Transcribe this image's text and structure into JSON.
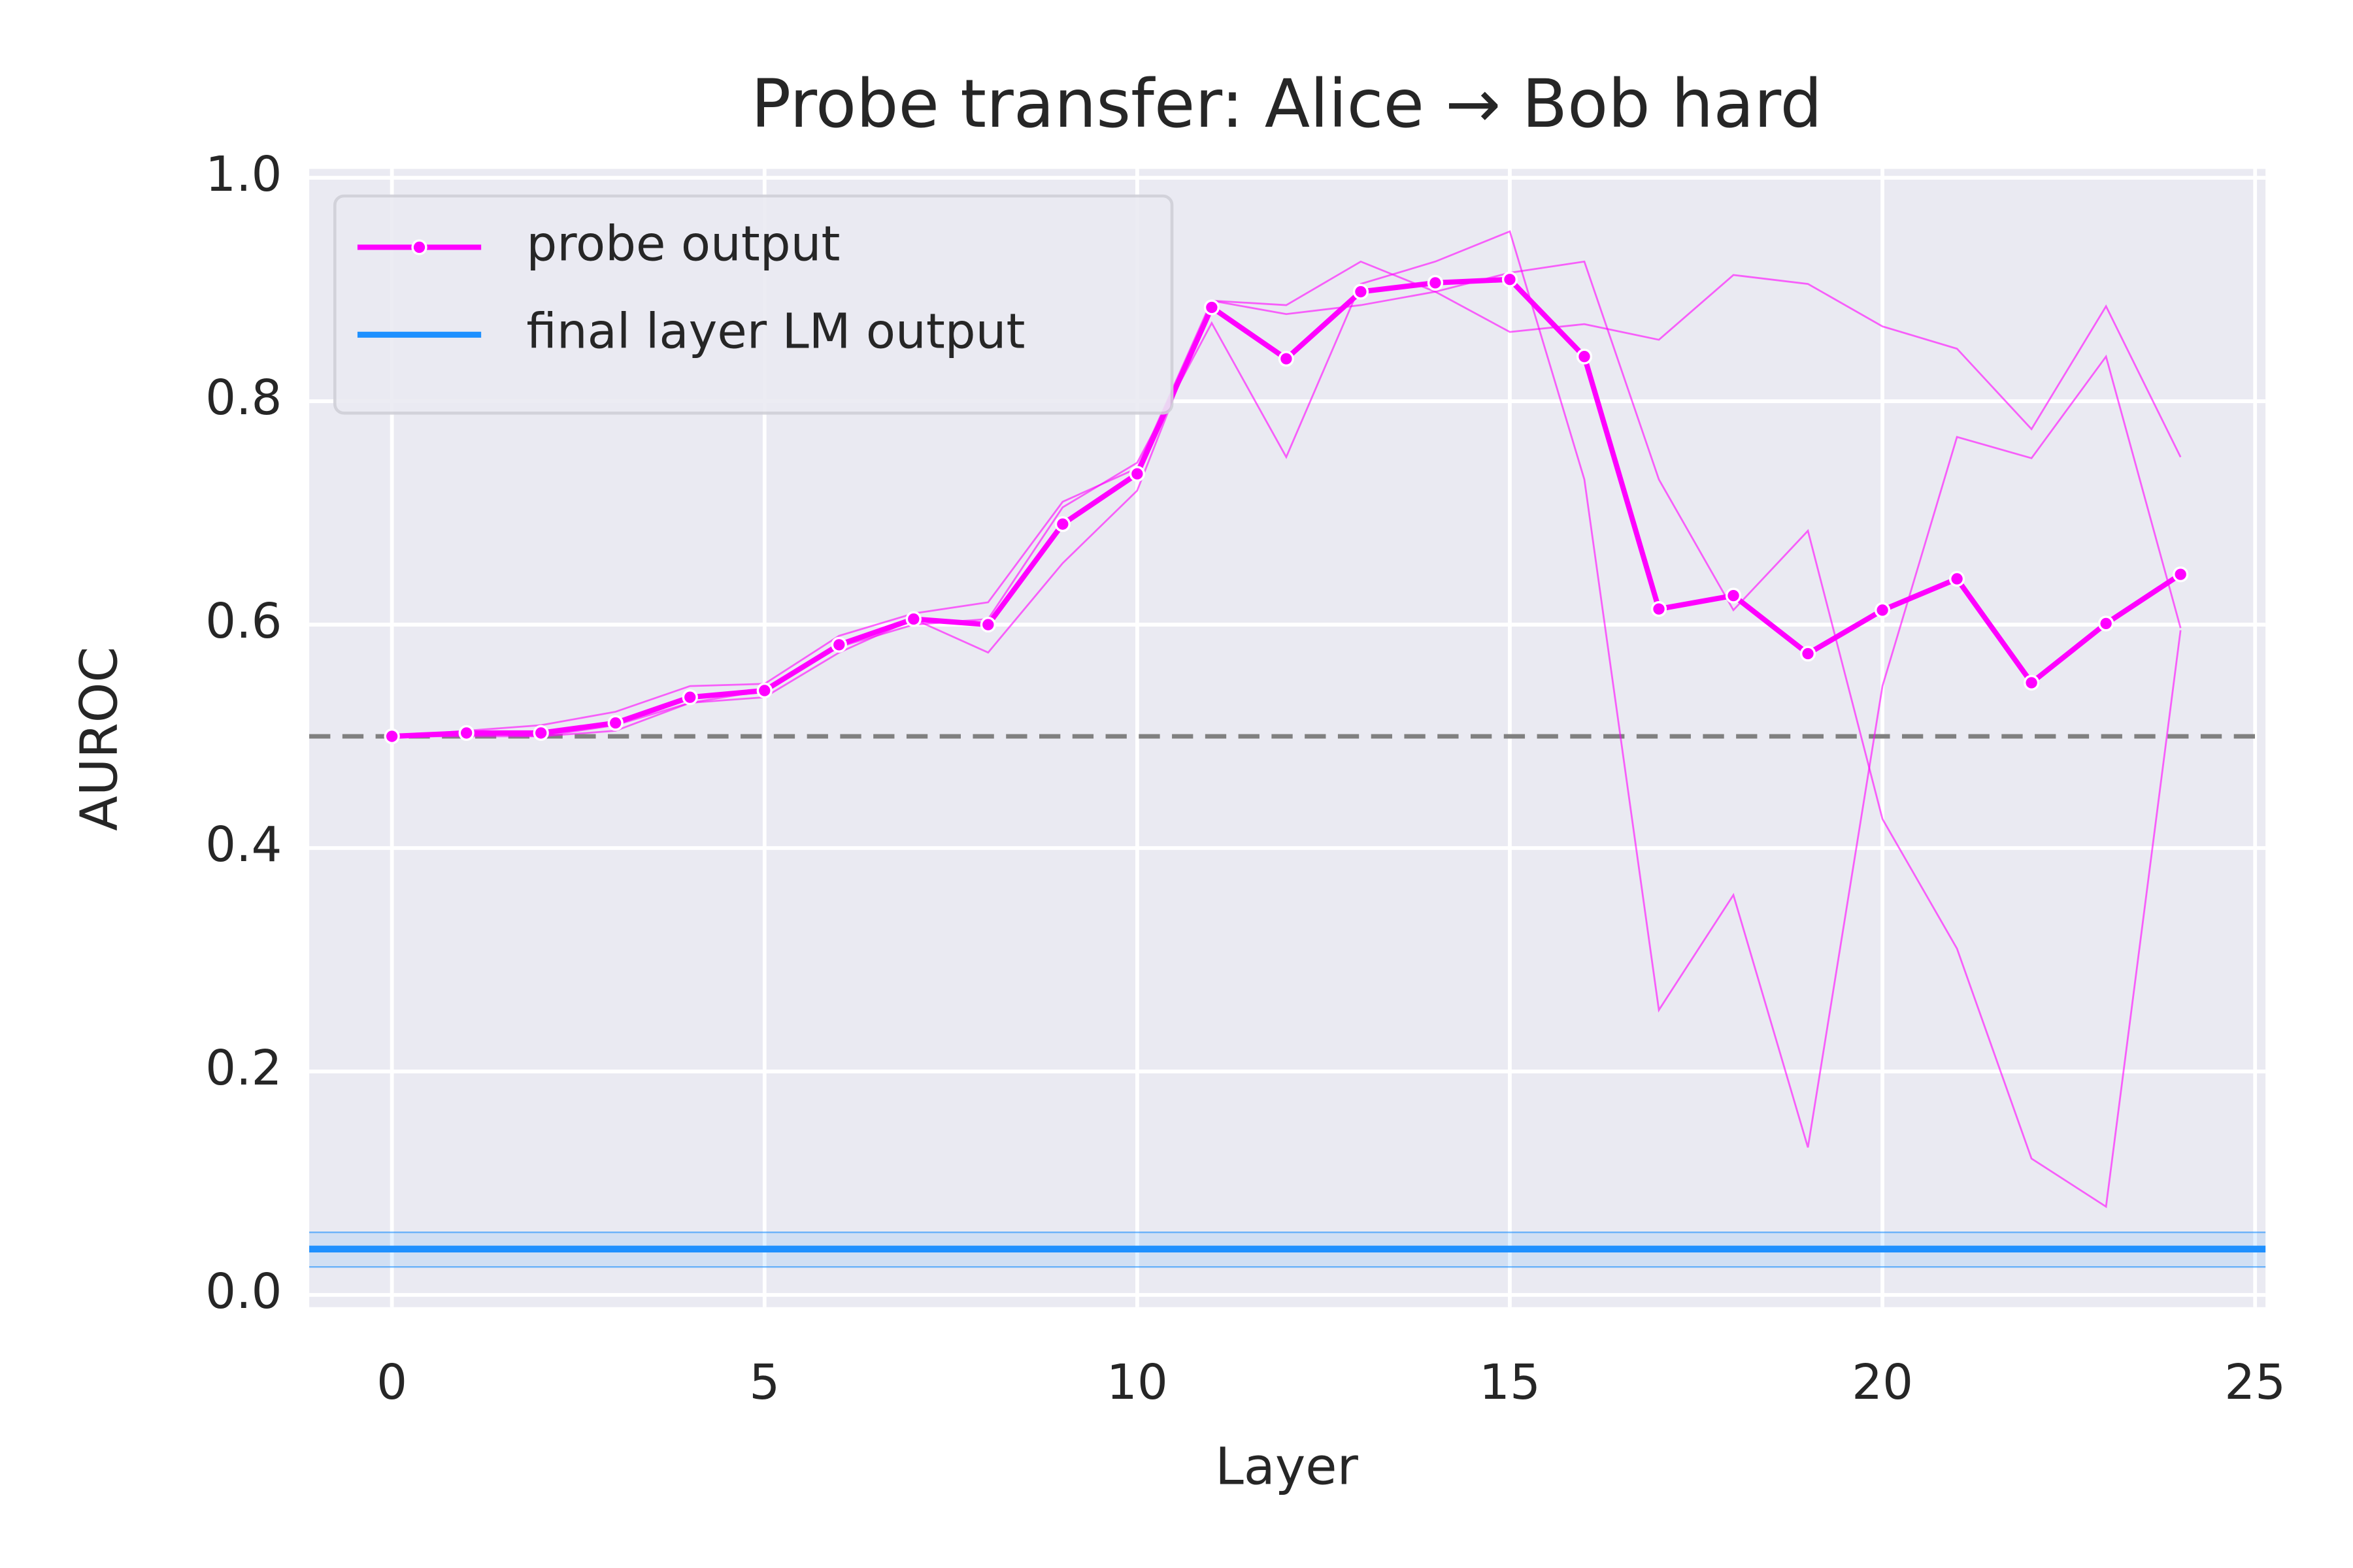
{
  "chart_data": {
    "type": "line",
    "title": "Probe transfer: Alice → Bob hard",
    "xlabel": "Layer",
    "ylabel": "AUROC",
    "x": [
      0,
      1,
      2,
      3,
      4,
      5,
      6,
      7,
      8,
      9,
      10,
      11,
      12,
      13,
      14,
      15,
      16,
      17,
      18,
      19,
      20,
      21,
      22,
      23,
      24
    ],
    "series": [
      {
        "name": "probe output",
        "color": "#ff00ff",
        "values": [
          0.5,
          0.503,
          0.503,
          0.512,
          0.535,
          0.541,
          0.582,
          0.605,
          0.6,
          0.69,
          0.735,
          0.884,
          0.838,
          0.898,
          0.906,
          0.909,
          0.84,
          0.614,
          0.626,
          0.574,
          0.613,
          0.641,
          0.548,
          0.601,
          0.645
        ]
      }
    ],
    "runs": [
      {
        "color": "#ff00ff",
        "values": [
          0.5,
          0.505,
          0.51,
          0.522,
          0.545,
          0.547,
          0.59,
          0.61,
          0.62,
          0.71,
          0.74,
          0.89,
          0.886,
          0.925,
          0.898,
          0.862,
          0.869,
          0.855,
          0.913,
          0.905,
          0.867,
          0.847,
          0.775,
          0.885,
          0.75
        ]
      },
      {
        "color": "#ff00ff",
        "values": [
          0.5,
          0.503,
          0.5,
          0.51,
          0.53,
          0.541,
          0.58,
          0.6,
          0.605,
          0.705,
          0.745,
          0.87,
          0.75,
          0.905,
          0.925,
          0.952,
          0.73,
          0.255,
          0.358,
          0.132,
          0.545,
          0.768,
          0.749,
          0.84,
          0.597
        ]
      },
      {
        "color": "#ff00ff",
        "values": [
          0.5,
          0.5,
          0.5,
          0.505,
          0.53,
          0.535,
          0.575,
          0.605,
          0.575,
          0.655,
          0.72,
          0.89,
          0.878,
          0.886,
          0.898,
          0.915,
          0.925,
          0.73,
          0.613,
          0.684,
          0.426,
          0.31,
          0.122,
          0.079,
          0.595
        ]
      }
    ],
    "reference_lines": [
      {
        "name": "final layer LM output",
        "y": 0.041,
        "band": [
          0.025,
          0.056
        ],
        "color": "#1e90ff",
        "style": "solid"
      },
      {
        "y": 0.5,
        "color": "#808080",
        "style": "dashed"
      }
    ],
    "xlim": [
      -1.11,
      25.14
    ],
    "ylim": [
      -0.011,
      1.008
    ],
    "xticks": [
      0,
      5,
      10,
      15,
      20,
      25
    ],
    "yticks": [
      {
        "value": 0,
        "label": "0.0"
      },
      {
        "value": 0.2,
        "label": "0.2"
      },
      {
        "value": 0.4,
        "label": "0.4"
      },
      {
        "value": 0.6,
        "label": "0.6"
      },
      {
        "value": 0.8,
        "label": "0.8"
      },
      {
        "value": 1,
        "label": "1.0"
      }
    ],
    "grid": true,
    "legend": "upper left"
  }
}
